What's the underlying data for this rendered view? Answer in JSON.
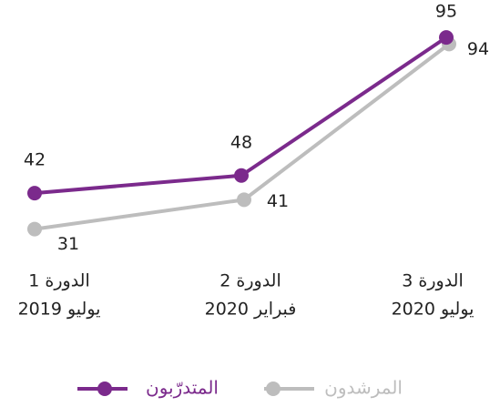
{
  "chart_data": {
    "type": "line",
    "categories": [
      [
        "الدورة 1",
        "يوليو 2019"
      ],
      [
        "الدورة 2",
        "فبراير 2020"
      ],
      [
        "الدورة 3",
        "يوليو 2020"
      ]
    ],
    "series": [
      {
        "name": "المتدرّبون",
        "color": "#7b2a8c",
        "values": [
          42,
          48,
          95
        ]
      },
      {
        "name": "المرشدون",
        "color": "#bdbdbd",
        "values": [
          31,
          41,
          94
        ]
      }
    ],
    "ylim": [
      0,
      100
    ]
  }
}
